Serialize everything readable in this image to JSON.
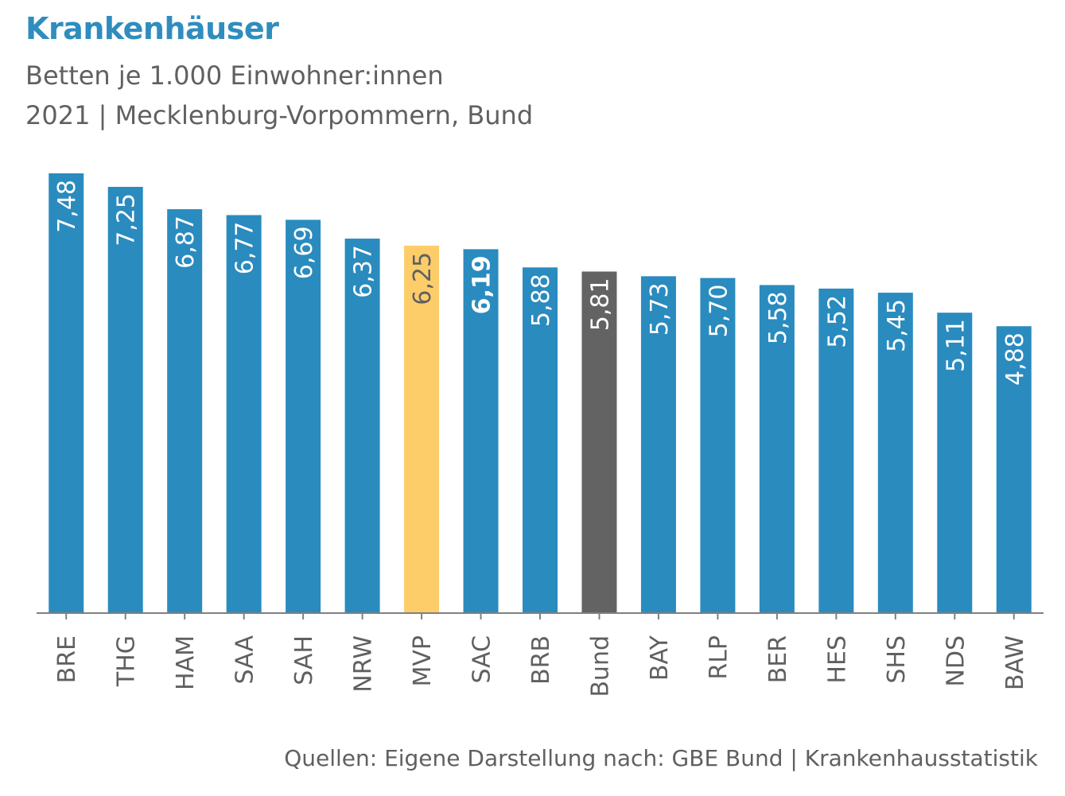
{
  "header": {
    "title": "Krankenhäuser",
    "subtitle_line1": "Betten je 1.000 Einwohner:innen",
    "subtitle_line2": "2021 | Mecklenburg-Vorpommern, Bund"
  },
  "footer": {
    "source": "Quellen: Eigene Darstellung nach: GBE Bund | Krankenhausstatistik"
  },
  "colors": {
    "default_bar": "#2a8bbf",
    "highlight_bar": "#fdcd6a",
    "national_bar": "#636363",
    "title": "#2f8dbf",
    "axis": "#808080",
    "text": "#606060"
  },
  "chart_data": {
    "type": "bar",
    "orientation": "vertical",
    "categories": [
      "BRE",
      "THG",
      "HAM",
      "SAA",
      "SAH",
      "NRW",
      "MVP",
      "SAC",
      "BRB",
      "Bund",
      "BAY",
      "RLP",
      "BER",
      "HES",
      "SHS",
      "NDS",
      "BAW"
    ],
    "values": [
      7.48,
      7.25,
      6.87,
      6.77,
      6.69,
      6.37,
      6.25,
      6.19,
      5.88,
      5.81,
      5.73,
      5.7,
      5.58,
      5.52,
      5.45,
      5.11,
      4.88
    ],
    "value_labels": [
      "7,48",
      "7,25",
      "6,87",
      "6,77",
      "6,69",
      "6,37",
      "6,25",
      "6,19",
      "5,88",
      "5,81",
      "5,73",
      "5,70",
      "5,58",
      "5,52",
      "5,45",
      "5,11",
      "4,88"
    ],
    "bar_colors": [
      "#2a8bbf",
      "#2a8bbf",
      "#2a8bbf",
      "#2a8bbf",
      "#2a8bbf",
      "#2a8bbf",
      "#fdcd6a",
      "#2a8bbf",
      "#2a8bbf",
      "#636363",
      "#2a8bbf",
      "#2a8bbf",
      "#2a8bbf",
      "#2a8bbf",
      "#2a8bbf",
      "#2a8bbf",
      "#2a8bbf"
    ],
    "label_colors": [
      "#ffffff",
      "#ffffff",
      "#ffffff",
      "#ffffff",
      "#ffffff",
      "#ffffff",
      "#606060",
      "#ffffff",
      "#ffffff",
      "#ffffff",
      "#ffffff",
      "#ffffff",
      "#ffffff",
      "#ffffff",
      "#ffffff",
      "#ffffff",
      "#ffffff"
    ],
    "bold_labels": [
      "SAC"
    ],
    "ylim": [
      0,
      7.48
    ],
    "xlabel": "",
    "ylabel": "",
    "grid": false,
    "legend": "none",
    "value_label_rotation": "vertical",
    "category_label_rotation": "vertical"
  }
}
